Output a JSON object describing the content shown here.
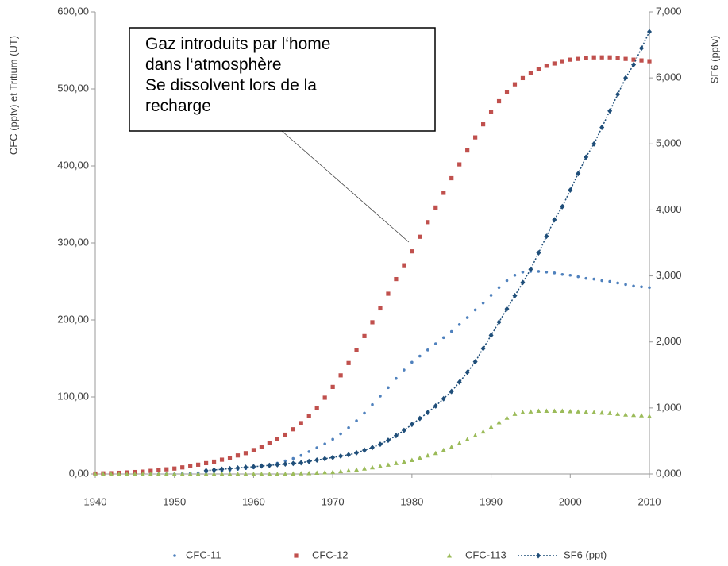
{
  "chart_data": {
    "type": "line",
    "ylabel": "CFC (pptv) et Tritium (UT)",
    "y2label": "SF6 (pptv)",
    "annotation": [
      "Gaz introduits par l‘home",
      "dans l‘atmosphère",
      "Se dissolvent lors de la",
      "recharge"
    ],
    "x": [
      1940,
      1941,
      1942,
      1943,
      1944,
      1945,
      1946,
      1947,
      1948,
      1949,
      1950,
      1951,
      1952,
      1953,
      1954,
      1955,
      1956,
      1957,
      1958,
      1959,
      1960,
      1961,
      1962,
      1963,
      1964,
      1965,
      1966,
      1967,
      1968,
      1969,
      1970,
      1971,
      1972,
      1973,
      1974,
      1975,
      1976,
      1977,
      1978,
      1979,
      1980,
      1981,
      1982,
      1983,
      1984,
      1985,
      1986,
      1987,
      1988,
      1989,
      1990,
      1991,
      1992,
      1993,
      1994,
      1995,
      1996,
      1997,
      1998,
      1999,
      2000,
      2001,
      2002,
      2003,
      2004,
      2005,
      2006,
      2007,
      2008,
      2009,
      2010
    ],
    "xlim": [
      1940,
      2010
    ],
    "xticks": [
      1940,
      1950,
      1960,
      1970,
      1980,
      1990,
      2000,
      2010
    ],
    "ylim": [
      0,
      600
    ],
    "yticks": [
      {
        "value": 0,
        "label": "0,00"
      },
      {
        "value": 100,
        "label": "100,00"
      },
      {
        "value": 200,
        "label": "200,00"
      },
      {
        "value": 300,
        "label": "300,00"
      },
      {
        "value": 400,
        "label": "400,00"
      },
      {
        "value": 500,
        "label": "500,00"
      },
      {
        "value": 600,
        "label": "600,00"
      }
    ],
    "y2lim": [
      0,
      7
    ],
    "y2ticks": [
      {
        "value": 0,
        "label": "0,000"
      },
      {
        "value": 1,
        "label": "1,000"
      },
      {
        "value": 2,
        "label": "2,000"
      },
      {
        "value": 3,
        "label": "3,000"
      },
      {
        "value": 4,
        "label": "4,000"
      },
      {
        "value": 5,
        "label": "5,000"
      },
      {
        "value": 6,
        "label": "6,000"
      },
      {
        "value": 7,
        "label": "7,000"
      }
    ],
    "grid": false,
    "legend": "bottom",
    "series": [
      {
        "name": "CFC-11",
        "color": "#4f81bd",
        "marker": "circle",
        "values": [
          0,
          0,
          0,
          0,
          0,
          0,
          0,
          0,
          0,
          0,
          0,
          0.5,
          1,
          1.5,
          2,
          3,
          4,
          5,
          6,
          7,
          8,
          10,
          12,
          14,
          17,
          20,
          24,
          29,
          34,
          39,
          45,
          52,
          60,
          69,
          79,
          90,
          101,
          112,
          124,
          135,
          145,
          153,
          161,
          169,
          177,
          185,
          194,
          203,
          213,
          222,
          232,
          242,
          251,
          258,
          262,
          263,
          263,
          262,
          261,
          259,
          258,
          256,
          254,
          253,
          251,
          250,
          248,
          246,
          244,
          243,
          242
        ]
      },
      {
        "name": "CFC-12",
        "color": "#c0504d",
        "marker": "square",
        "values": [
          0.5,
          0.8,
          1,
          1.5,
          2,
          2.5,
          3,
          4,
          5,
          6,
          7,
          8.5,
          10,
          12,
          14,
          16,
          18.5,
          21,
          24,
          27,
          31,
          35,
          40,
          45,
          51,
          58,
          66,
          75,
          86,
          99,
          113,
          128,
          144,
          161,
          179,
          197,
          215,
          234,
          253,
          271,
          289,
          308,
          327,
          346,
          365,
          384,
          402,
          420,
          437,
          454,
          470,
          484,
          496,
          506,
          514,
          521,
          526,
          530,
          533,
          536,
          538,
          539,
          540,
          541,
          541,
          541,
          540,
          539,
          538,
          537,
          536
        ]
      },
      {
        "name": "CFC-113",
        "color": "#9bbb59",
        "marker": "triangle",
        "values": [
          0,
          0,
          0,
          0,
          0,
          0,
          0,
          0,
          0,
          0,
          0,
          0,
          0,
          0,
          0,
          0,
          0,
          0,
          0,
          0,
          0,
          0,
          0,
          0,
          0,
          0.5,
          0.8,
          1,
          1.5,
          2,
          2.5,
          3.5,
          4.5,
          5.5,
          7,
          8.5,
          10,
          12,
          14,
          16,
          18,
          21,
          24,
          27,
          31,
          35,
          40,
          45,
          50,
          55,
          61,
          67,
          73,
          78,
          80,
          81,
          82,
          82,
          82,
          82,
          81.5,
          81,
          80.5,
          80,
          79.5,
          79,
          78,
          77,
          76.5,
          76,
          75
        ]
      },
      {
        "name": "SF6 (ppt)",
        "color": "#1f4e79",
        "marker": "diamond",
        "axis": "y2",
        "values": [
          null,
          null,
          null,
          null,
          null,
          null,
          null,
          null,
          null,
          null,
          null,
          null,
          null,
          null,
          0.05,
          0.06,
          0.07,
          0.08,
          0.09,
          0.1,
          0.11,
          0.12,
          0.13,
          0.14,
          0.15,
          0.16,
          0.17,
          0.19,
          0.21,
          0.23,
          0.25,
          0.27,
          0.29,
          0.32,
          0.36,
          0.4,
          0.45,
          0.51,
          0.58,
          0.66,
          0.75,
          0.84,
          0.93,
          1.03,
          1.14,
          1.25,
          1.39,
          1.54,
          1.7,
          1.9,
          2.1,
          2.3,
          2.5,
          2.7,
          2.9,
          3.1,
          3.35,
          3.6,
          3.85,
          4.05,
          4.3,
          4.55,
          4.8,
          5.0,
          5.25,
          5.5,
          5.75,
          6.0,
          6.2,
          6.45,
          6.7
        ]
      }
    ]
  }
}
